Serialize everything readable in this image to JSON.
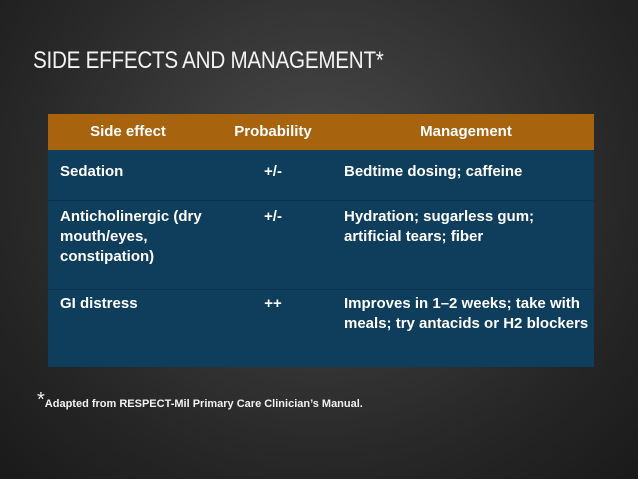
{
  "slide": {
    "title": "SIDE EFFECTS AND MANAGEMENT*"
  },
  "table": {
    "headers": [
      "Side effect",
      "Probability",
      "Management"
    ],
    "rows": [
      {
        "effect": "Sedation",
        "probability": "+/-",
        "management": "Bedtime dosing; caffeine"
      },
      {
        "effect": "Anticholinergic (dry mouth/eyes, constipation)",
        "probability": "+/-",
        "management": "Hydration; sugarless gum; artificial tears; fiber"
      },
      {
        "effect": "GI distress",
        "probability": "++",
        "management": "Improves in 1–2 weeks; take with meals; try antacids or H2 blockers"
      }
    ]
  },
  "footnote": {
    "marker": "*",
    "text": "Adapted from RESPECT-Mil Primary Care Clinician’s Manual."
  },
  "colors": {
    "background": "#2e2e2e",
    "header": "#a8630f",
    "body": "#0f3d5c",
    "text": "#ffffff"
  }
}
